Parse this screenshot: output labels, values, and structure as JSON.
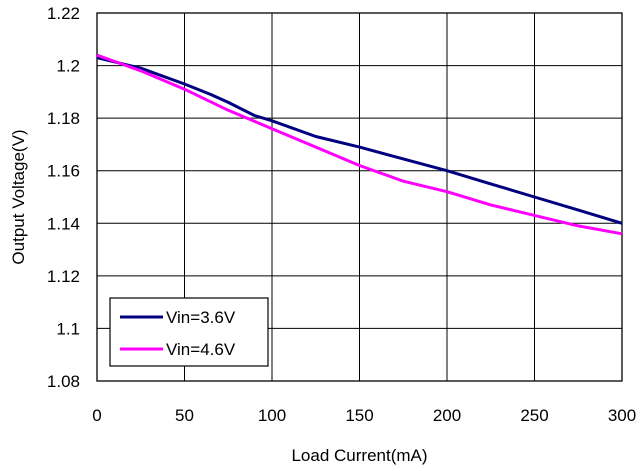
{
  "chart_data": {
    "type": "line",
    "title": "",
    "xlabel": "Load Current(mA)",
    "ylabel": "Output Voltage(V)",
    "xlim": [
      0,
      300
    ],
    "ylim": [
      1.08,
      1.22
    ],
    "x_ticks": [
      0,
      50,
      100,
      150,
      200,
      250,
      300
    ],
    "y_ticks": [
      1.08,
      1.1,
      1.12,
      1.14,
      1.16,
      1.18,
      1.2,
      1.22
    ],
    "x_tick_labels": [
      "0",
      "50",
      "100",
      "150",
      "200",
      "250",
      "300"
    ],
    "y_tick_labels": [
      "1.08",
      "1.1",
      "1.12",
      "1.14",
      "1.16",
      "1.18",
      "1.2",
      "1.22"
    ],
    "grid": true,
    "legend_position": "bottom-left",
    "series": [
      {
        "name": "Vin=3.6V",
        "color": "#000080",
        "x": [
          0,
          25,
          50,
          65,
          75,
          90,
          100,
          125,
          150,
          175,
          200,
          225,
          250,
          275,
          300
        ],
        "y": [
          1.203,
          1.199,
          1.193,
          1.189,
          1.186,
          1.181,
          1.179,
          1.173,
          1.169,
          1.1645,
          1.16,
          1.155,
          1.15,
          1.145,
          1.14
        ]
      },
      {
        "name": "Vin=4.6V",
        "color": "#FF00FF",
        "x": [
          0,
          25,
          50,
          75,
          100,
          125,
          150,
          175,
          200,
          225,
          250,
          275,
          300
        ],
        "y": [
          1.204,
          1.198,
          1.191,
          1.183,
          1.176,
          1.169,
          1.162,
          1.156,
          1.152,
          1.147,
          1.143,
          1.139,
          1.136
        ]
      }
    ]
  }
}
